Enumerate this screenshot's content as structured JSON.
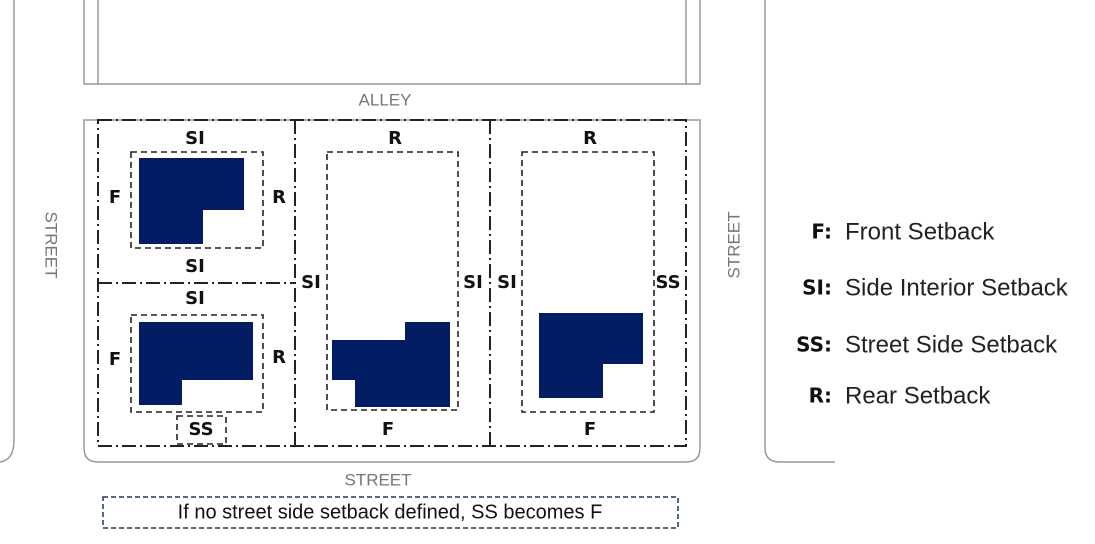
{
  "alley": "ALLEY",
  "streets": {
    "left": "STREET",
    "right": "STREET",
    "bottom": "STREET"
  },
  "lots": [
    {
      "top": "SI",
      "left": "F",
      "right": "R",
      "bottom": "SI"
    },
    {
      "top": "SI",
      "left": "F",
      "right": "R",
      "bottom": "SS"
    },
    {
      "top": "R",
      "left": "SI",
      "right": "SI",
      "bottom": "F"
    },
    {
      "top": "R",
      "left": "SI",
      "right": "SS",
      "bottom": "F"
    }
  ],
  "note": "If no street side setback defined, SS becomes F",
  "legend": [
    {
      "key": "F:",
      "label": "Front Setback"
    },
    {
      "key": "SI:",
      "label": "Side Interior Setback"
    },
    {
      "key": "SS:",
      "label": "Street Side Setback"
    },
    {
      "key": "R:",
      "label": "Rear Setback"
    }
  ]
}
